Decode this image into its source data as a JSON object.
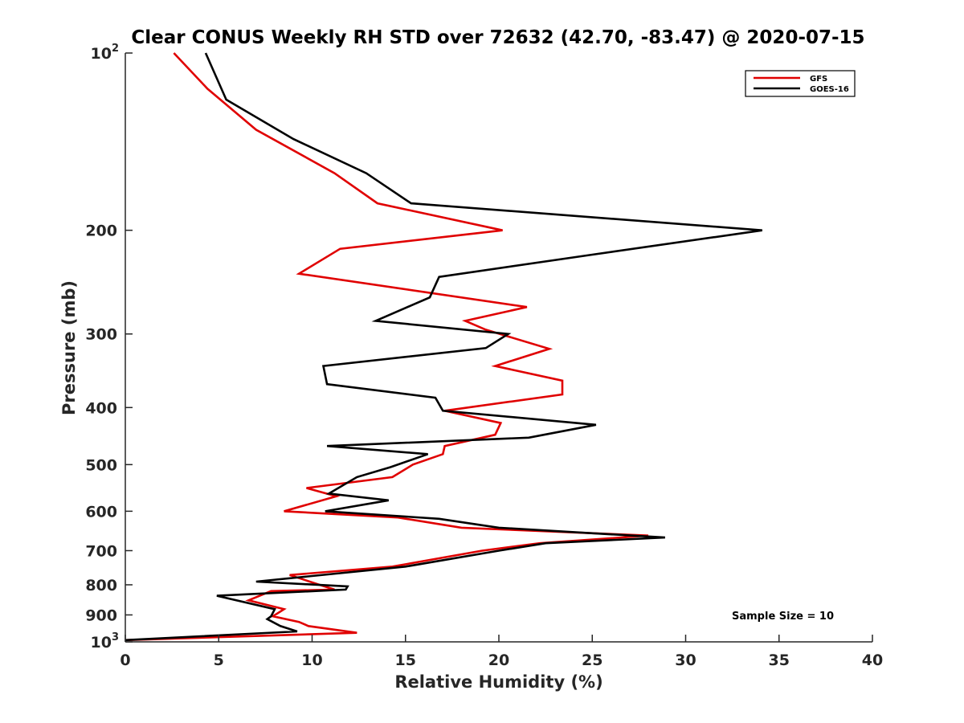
{
  "chart_data": {
    "type": "line",
    "title": "Clear CONUS Weekly RH STD over 72632 (42.70, -83.47) @ 2020-07-15",
    "xlabel": "Relative Humidity (%)",
    "ylabel": "Pressure (mb)",
    "xlim": [
      0,
      40
    ],
    "ylim": [
      100,
      1000
    ],
    "y_scale": "log",
    "y_reversed": true,
    "x_ticks": [
      "0",
      "5",
      "10",
      "15",
      "20",
      "25",
      "30",
      "35",
      "40"
    ],
    "y_ticks": [
      {
        "value": 100,
        "base": "10",
        "exp": "2"
      },
      {
        "value": 200,
        "label": "200"
      },
      {
        "value": 300,
        "label": "300"
      },
      {
        "value": 400,
        "label": "400"
      },
      {
        "value": 500,
        "label": "500"
      },
      {
        "value": 600,
        "label": "600"
      },
      {
        "value": 700,
        "label": "700"
      },
      {
        "value": 800,
        "label": "800"
      },
      {
        "value": 900,
        "label": "900"
      },
      {
        "value": 1000,
        "base": "10",
        "exp": "3"
      }
    ],
    "grid": false,
    "legend_position": "top-right",
    "annotation": "Sample Size = 10",
    "series": [
      {
        "name": "GFS",
        "color": "#e00000",
        "points": [
          [
            2.6,
            100
          ],
          [
            4.4,
            115
          ],
          [
            7,
            135
          ],
          [
            11.2,
            160
          ],
          [
            13.5,
            180
          ],
          [
            20.2,
            200
          ],
          [
            11.5,
            215
          ],
          [
            9.3,
            237
          ],
          [
            21.5,
            270
          ],
          [
            18.2,
            285
          ],
          [
            19.3,
            295
          ],
          [
            22.7,
            318
          ],
          [
            19.8,
            340
          ],
          [
            23.4,
            360
          ],
          [
            23.4,
            380
          ],
          [
            17.1,
            405
          ],
          [
            20.1,
            425
          ],
          [
            19.8,
            445
          ],
          [
            17.1,
            465
          ],
          [
            17,
            480
          ],
          [
            15.4,
            500
          ],
          [
            14.3,
            525
          ],
          [
            9.7,
            548
          ],
          [
            11.3,
            566
          ],
          [
            8.5,
            600
          ],
          [
            14.6,
            615
          ],
          [
            18,
            640
          ],
          [
            28,
            660
          ],
          [
            22.2,
            680
          ],
          [
            19.1,
            700
          ],
          [
            14.3,
            745
          ],
          [
            8.8,
            770
          ],
          [
            10.4,
            800
          ],
          [
            11.2,
            815
          ],
          [
            7.8,
            820
          ],
          [
            6.6,
            850
          ],
          [
            8.5,
            880
          ],
          [
            7.9,
            905
          ],
          [
            9.3,
            925
          ],
          [
            9.8,
            940
          ],
          [
            12.4,
            965
          ],
          [
            0,
            993
          ]
        ]
      },
      {
        "name": "GOES-16",
        "color": "#000000",
        "points": [
          [
            4.3,
            100
          ],
          [
            5.4,
            120
          ],
          [
            9,
            140
          ],
          [
            12.9,
            160
          ],
          [
            15.3,
            180
          ],
          [
            34.1,
            200
          ],
          [
            25,
            220
          ],
          [
            16.8,
            240
          ],
          [
            16.3,
            260
          ],
          [
            13.4,
            285
          ],
          [
            20.5,
            300
          ],
          [
            19.3,
            317
          ],
          [
            10.6,
            340
          ],
          [
            10.8,
            365
          ],
          [
            16.6,
            385
          ],
          [
            17,
            405
          ],
          [
            25.2,
            428
          ],
          [
            21.6,
            450
          ],
          [
            10.8,
            465
          ],
          [
            16.2,
            480
          ],
          [
            14.2,
            505
          ],
          [
            12.4,
            525
          ],
          [
            10.9,
            560
          ],
          [
            14.1,
            575
          ],
          [
            10.7,
            600
          ],
          [
            16.8,
            618
          ],
          [
            20,
            640
          ],
          [
            28.9,
            665
          ],
          [
            22.5,
            680
          ],
          [
            20,
            700
          ],
          [
            15,
            745
          ],
          [
            7,
            790
          ],
          [
            11.9,
            805
          ],
          [
            11.8,
            815
          ],
          [
            4.9,
            835
          ],
          [
            8,
            880
          ],
          [
            7.8,
            905
          ],
          [
            7.6,
            915
          ],
          [
            8.3,
            940
          ],
          [
            9.2,
            960
          ],
          [
            0,
            993
          ]
        ]
      }
    ]
  }
}
